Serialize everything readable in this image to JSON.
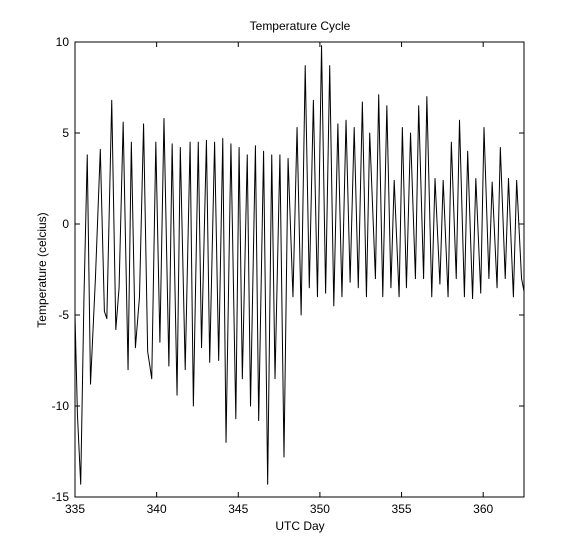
{
  "chart_data": {
    "type": "line",
    "title": "Temperature Cycle",
    "xlabel": "UTC Day",
    "ylabel": "Temperature (celcius)",
    "xlim": [
      335,
      362.5
    ],
    "ylim": [
      -15,
      10
    ],
    "xticks": [
      335,
      340,
      345,
      350,
      355,
      360
    ],
    "yticks": [
      -15,
      -10,
      -5,
      0,
      5,
      10
    ],
    "grid": false,
    "legend": "none",
    "line_color": "#000000",
    "series": [
      {
        "x": [
          335.0,
          335.15,
          335.35,
          335.55,
          335.75,
          335.95,
          336.25,
          336.55,
          336.8,
          336.95,
          337.25,
          337.5,
          337.7,
          337.95,
          338.25,
          338.45,
          338.7,
          338.95,
          339.2,
          339.45,
          339.7,
          339.95,
          340.2,
          340.45,
          340.75,
          340.95,
          341.25,
          341.45,
          341.75,
          342.05,
          342.25,
          342.55,
          342.75,
          343.05,
          343.25,
          343.55,
          343.8,
          344.05,
          344.25,
          344.55,
          344.85,
          345.05,
          345.25,
          345.55,
          345.75,
          346.05,
          346.25,
          346.55,
          346.8,
          347.05,
          347.25,
          347.55,
          347.8,
          348.05,
          348.35,
          348.6,
          348.85,
          349.1,
          349.35,
          349.6,
          349.85,
          350.1,
          350.35,
          350.6,
          350.85,
          351.1,
          351.35,
          351.6,
          351.85,
          352.1,
          352.35,
          352.6,
          352.85,
          353.05,
          353.4,
          353.6,
          353.85,
          354.1,
          354.35,
          354.55,
          354.85,
          355.05,
          355.3,
          355.55,
          355.85,
          356.05,
          356.35,
          356.55,
          356.85,
          357.05,
          357.35,
          357.55,
          357.85,
          358.05,
          358.35,
          358.55,
          358.85,
          359.05,
          359.35,
          359.55,
          359.85,
          360.05,
          360.35,
          360.55,
          360.85,
          361.05,
          361.35,
          361.55,
          361.85,
          362.05,
          362.35,
          362.5
        ],
        "y": [
          -5.0,
          -10.5,
          -14.3,
          -4.0,
          3.8,
          -8.8,
          -3.0,
          4.1,
          -4.8,
          -5.2,
          6.8,
          -5.8,
          -3.5,
          5.6,
          -8.0,
          4.5,
          -6.8,
          -4.0,
          5.5,
          -7.0,
          -8.5,
          4.5,
          -6.5,
          5.8,
          -7.8,
          4.4,
          -9.4,
          4.2,
          -8.0,
          4.5,
          -10.0,
          4.5,
          -6.8,
          4.6,
          -7.6,
          4.5,
          -7.5,
          4.7,
          -12.0,
          4.4,
          -10.7,
          4.2,
          -8.5,
          3.8,
          -10.0,
          4.3,
          -10.8,
          4.0,
          -14.3,
          3.8,
          -8.5,
          3.8,
          -12.8,
          3.6,
          -4.0,
          5.3,
          -5.0,
          8.7,
          -3.5,
          6.8,
          -4.0,
          9.8,
          -3.8,
          8.7,
          -4.5,
          5.5,
          -4.0,
          5.7,
          -3.2,
          5.3,
          -3.5,
          6.7,
          -4.0,
          5.0,
          -3.0,
          7.1,
          -4.0,
          6.5,
          -3.5,
          2.4,
          -4.0,
          5.3,
          -3.5,
          5.0,
          -3.0,
          6.5,
          -3.0,
          7.0,
          -4.0,
          2.5,
          -3.3,
          2.4,
          -4.0,
          4.5,
          -3.0,
          5.7,
          -4.0,
          4.0,
          -4.1,
          2.5,
          -3.8,
          5.3,
          -3.0,
          2.3,
          -3.5,
          4.2,
          -3.0,
          2.5,
          -4.0,
          2.4,
          -3.0,
          -3.7
        ]
      }
    ]
  }
}
